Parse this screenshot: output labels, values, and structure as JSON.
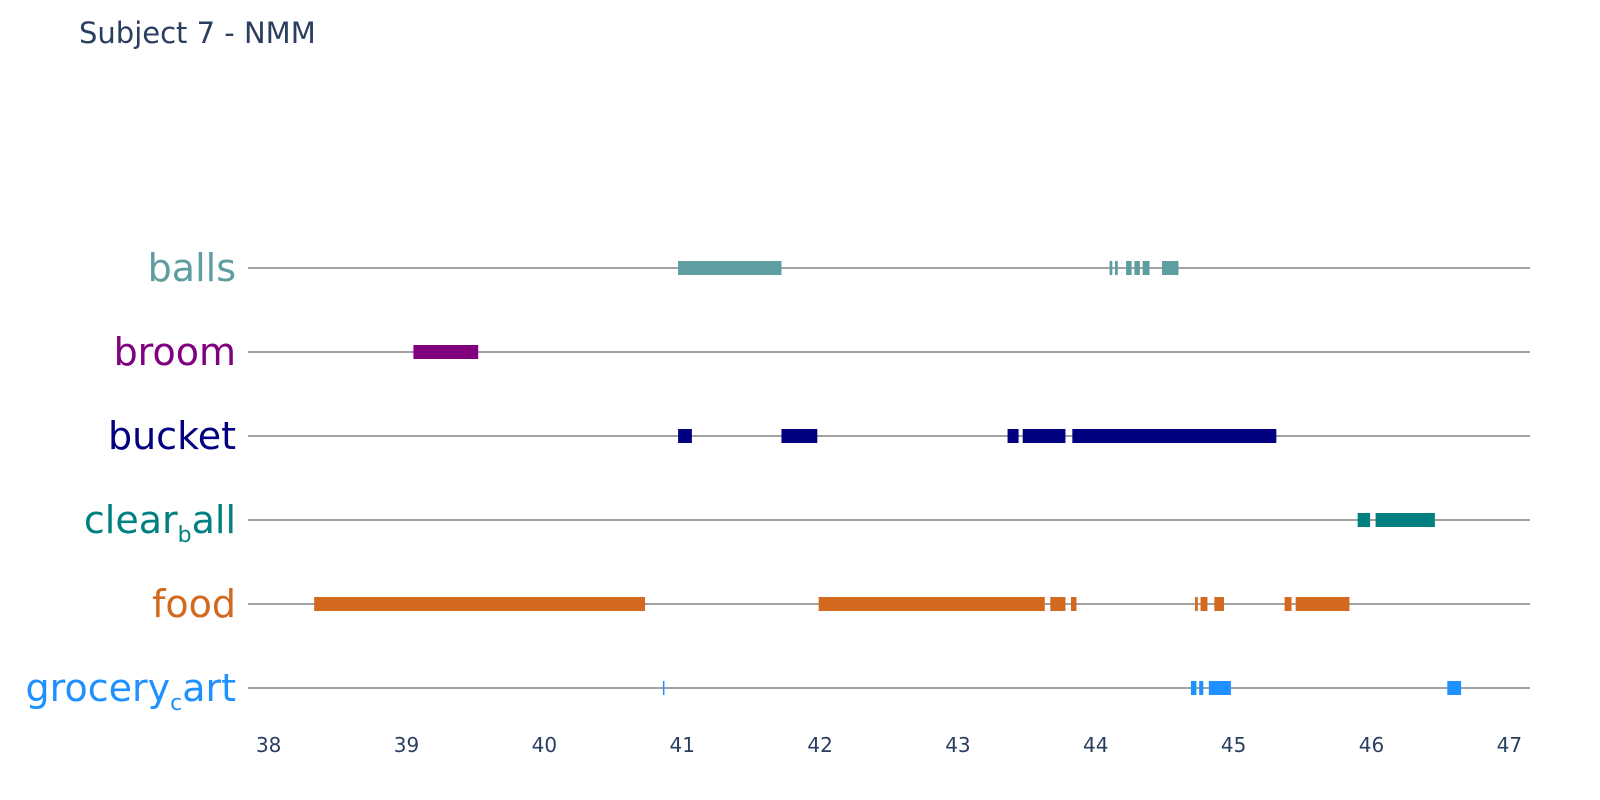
{
  "chart_data": {
    "type": "timeline",
    "title": "Subject 7 - NMM",
    "xlabel": "",
    "ylabel": "",
    "xlim": [
      37.85,
      47.15
    ],
    "x_ticks": [
      38,
      39,
      40,
      41,
      42,
      43,
      44,
      45,
      46,
      47
    ],
    "grid": false,
    "categories": [
      {
        "name": "balls",
        "label_main": "balls",
        "label_sub": "",
        "label_rest": "",
        "color": "#5f9ea0",
        "segments": [
          [
            40.97,
            41.72
          ],
          [
            44.1,
            44.12
          ],
          [
            44.14,
            44.16
          ],
          [
            44.22,
            44.26
          ],
          [
            44.28,
            44.32
          ],
          [
            44.34,
            44.39
          ],
          [
            44.48,
            44.6
          ]
        ]
      },
      {
        "name": "broom",
        "label_main": "broom",
        "label_sub": "",
        "label_rest": "",
        "color": "#800080",
        "segments": [
          [
            39.05,
            39.52
          ]
        ]
      },
      {
        "name": "bucket",
        "label_main": "bucket",
        "label_sub": "",
        "label_rest": "",
        "color": "#000080",
        "segments": [
          [
            40.97,
            41.07
          ],
          [
            41.72,
            41.98
          ],
          [
            43.36,
            43.44
          ],
          [
            43.47,
            43.78
          ],
          [
            43.83,
            45.31
          ]
        ]
      },
      {
        "name": "clear_ball",
        "label_main": "clear",
        "label_sub": "b",
        "label_rest": "all",
        "color": "#008080",
        "segments": [
          [
            45.9,
            45.99
          ],
          [
            46.03,
            46.46
          ]
        ]
      },
      {
        "name": "food",
        "label_main": "food",
        "label_sub": "",
        "label_rest": "",
        "color": "#d2691e",
        "segments": [
          [
            38.33,
            40.73
          ],
          [
            41.99,
            43.63
          ],
          [
            43.67,
            43.78
          ],
          [
            43.82,
            43.86
          ],
          [
            44.72,
            44.74
          ],
          [
            44.76,
            44.81
          ],
          [
            44.86,
            44.93
          ],
          [
            45.37,
            45.42
          ],
          [
            45.45,
            45.84
          ]
        ]
      },
      {
        "name": "grocery_cart",
        "label_main": "grocery",
        "label_sub": "c",
        "label_rest": "art",
        "color": "#1e90ff",
        "segments": [
          [
            40.86,
            40.87
          ],
          [
            44.69,
            44.73
          ],
          [
            44.75,
            44.78
          ],
          [
            44.82,
            44.98
          ],
          [
            46.55,
            46.65
          ]
        ]
      }
    ]
  }
}
